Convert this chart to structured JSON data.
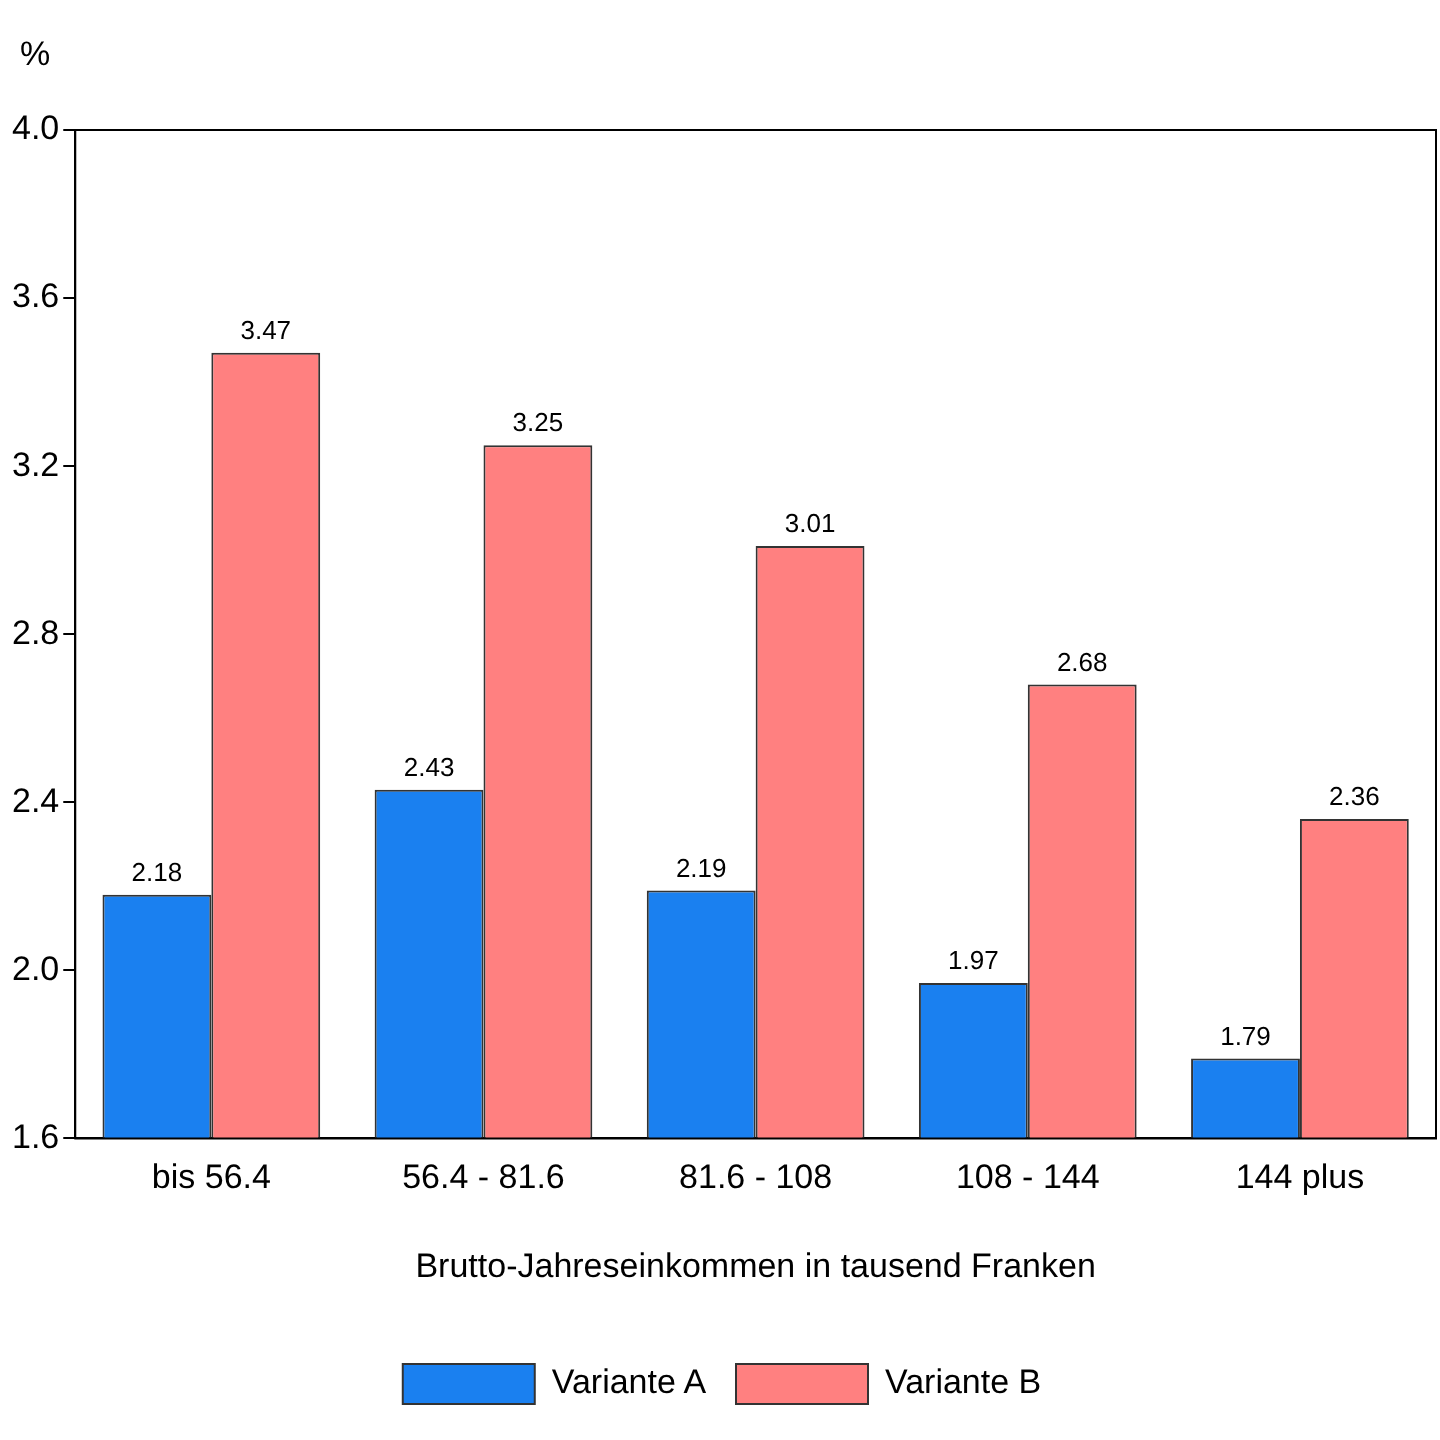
{
  "chart_data": {
    "type": "bar",
    "ylabel": "%",
    "xlabel": "Brutto-Jahreseinkommen in tausend Franken",
    "categories": [
      "bis 56.4",
      "56.4 - 81.6",
      "81.6 - 108",
      "108 - 144",
      "144 plus"
    ],
    "series": [
      {
        "name": "Variante A",
        "color": "#1a80f0",
        "values": [
          2.18,
          2.43,
          2.19,
          1.97,
          1.79
        ]
      },
      {
        "name": "Variante B",
        "color": "#ff8080",
        "values": [
          3.47,
          3.25,
          3.01,
          2.68,
          2.36
        ]
      }
    ],
    "ylim": [
      1.6,
      4.0
    ],
    "yticks": [
      {
        "value": 1.6,
        "label": "1.6"
      },
      {
        "value": 2.0,
        "label": "2.0"
      },
      {
        "value": 2.4,
        "label": "2.4"
      },
      {
        "value": 2.8,
        "label": "2.8"
      },
      {
        "value": 3.2,
        "label": "3.2"
      },
      {
        "value": 3.6,
        "label": "3.6"
      },
      {
        "value": 4.0,
        "label": "4.0"
      }
    ],
    "grid": false,
    "legend": "bottom",
    "data_labels": true
  }
}
